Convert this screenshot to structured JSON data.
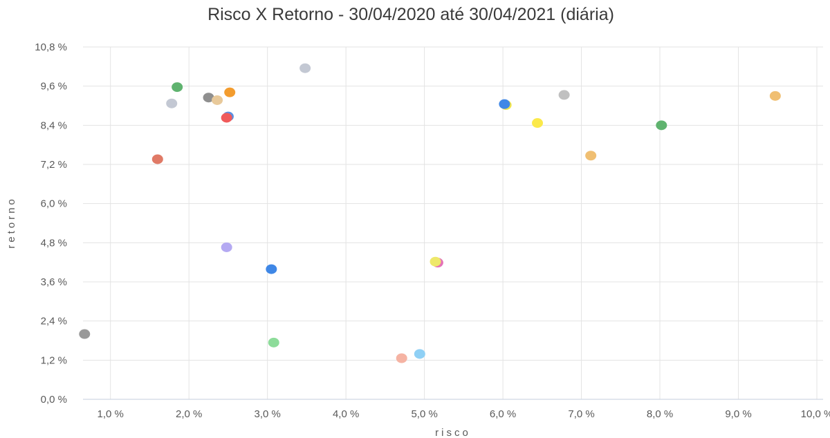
{
  "chart_data": {
    "type": "scatter",
    "title": "Risco X Retorno - 30/04/2020 até 30/04/2021 (diária)",
    "xlabel": "risco",
    "ylabel": "retorno",
    "xlim": [
      0.65,
      10.0
    ],
    "ylim": [
      0.0,
      10.8
    ],
    "x_ticks": [
      1.0,
      2.0,
      3.0,
      4.0,
      5.0,
      6.0,
      7.0,
      8.0,
      9.0,
      10.0
    ],
    "x_tick_labels": [
      "1,0 %",
      "2,0 %",
      "3,0 %",
      "4,0 %",
      "5,0 %",
      "6,0 %",
      "7,0 %",
      "8,0 %",
      "9,0 %",
      "10,0 %"
    ],
    "y_ticks": [
      0.0,
      1.2,
      2.4,
      3.6,
      4.8,
      6.0,
      7.2,
      8.4,
      9.6,
      10.8
    ],
    "y_tick_labels": [
      "0,0 %",
      "1,2 %",
      "2,4 %",
      "3,6 %",
      "4,8 %",
      "6,0 %",
      "7,2 %",
      "8,4 %",
      "9,6 %",
      "10,8 %"
    ],
    "grid": true,
    "legend": "none",
    "points": [
      {
        "x": 0.67,
        "y": 2.0,
        "color": "#999999"
      },
      {
        "x": 1.6,
        "y": 7.36,
        "color": "#e07a66"
      },
      {
        "x": 1.78,
        "y": 9.07,
        "color": "#c3c8d3"
      },
      {
        "x": 1.85,
        "y": 9.57,
        "color": "#5fb36f"
      },
      {
        "x": 2.25,
        "y": 9.25,
        "color": "#8f8f8f"
      },
      {
        "x": 2.36,
        "y": 9.17,
        "color": "#e8c99a"
      },
      {
        "x": 2.52,
        "y": 9.41,
        "color": "#f39c2e"
      },
      {
        "x": 2.5,
        "y": 8.67,
        "color": "#5a8fe0"
      },
      {
        "x": 2.48,
        "y": 8.63,
        "color": "#f05a5a"
      },
      {
        "x": 2.48,
        "y": 4.66,
        "color": "#b4a9f2"
      },
      {
        "x": 3.05,
        "y": 3.99,
        "color": "#3f87e6"
      },
      {
        "x": 3.08,
        "y": 1.74,
        "color": "#8ddc9a"
      },
      {
        "x": 3.48,
        "y": 10.15,
        "color": "#c3c8d3"
      },
      {
        "x": 4.71,
        "y": 1.26,
        "color": "#f5b3a3"
      },
      {
        "x": 4.94,
        "y": 1.39,
        "color": "#8fd0f5"
      },
      {
        "x": 5.17,
        "y": 4.19,
        "color": "#e472b8"
      },
      {
        "x": 5.14,
        "y": 4.22,
        "color": "#eee86a"
      },
      {
        "x": 6.04,
        "y": 9.02,
        "color": "#f0e44a"
      },
      {
        "x": 6.02,
        "y": 9.05,
        "color": "#3f87e6"
      },
      {
        "x": 6.44,
        "y": 8.47,
        "color": "#fbe94a"
      },
      {
        "x": 6.78,
        "y": 9.33,
        "color": "#c0c0c0"
      },
      {
        "x": 7.12,
        "y": 7.47,
        "color": "#f0bf72"
      },
      {
        "x": 8.02,
        "y": 8.4,
        "color": "#5fb36f"
      },
      {
        "x": 9.47,
        "y": 9.3,
        "color": "#f0bf72"
      }
    ]
  }
}
